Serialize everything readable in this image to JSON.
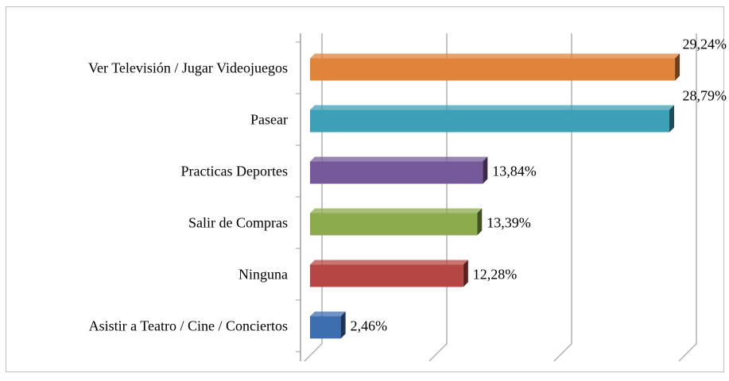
{
  "chart_data": {
    "type": "bar",
    "orientation": "horizontal",
    "categories": [
      "Ver Televisión / Jugar Videojuegos",
      "Pasear",
      "Practicas Deportes",
      "Salir de Compras",
      "Ninguna",
      "Asistir a Teatro / Cine / Conciertos"
    ],
    "values": [
      29.24,
      28.79,
      13.84,
      13.39,
      12.28,
      2.46
    ],
    "value_labels": [
      "29,24%",
      "28,79%",
      "13,84%",
      "13,39%",
      "12,28%",
      "2,46%"
    ],
    "colors": [
      "#e0843c",
      "#3ea0b6",
      "#76599b",
      "#8bab4d",
      "#b54644",
      "#3d6fb0"
    ],
    "xlim": [
      0,
      30
    ],
    "xticks": [
      0,
      10,
      20,
      30
    ],
    "grid": true
  }
}
